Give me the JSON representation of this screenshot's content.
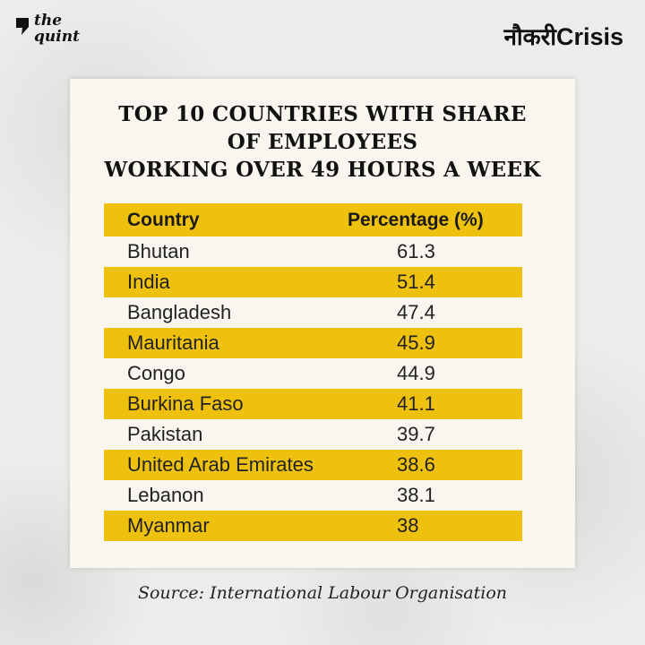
{
  "brand": {
    "left_logo_line1": "the",
    "left_logo_line2": "quint",
    "right_logo_hindi": "नौकरी",
    "right_logo_en": "Crisis"
  },
  "chart_data": {
    "type": "table",
    "title_lines": [
      "TOP 10 COUNTRIES WITH SHARE",
      "OF EMPLOYEES",
      "WORKING OVER 49 HOURS A WEEK"
    ],
    "columns": [
      "Country",
      "Percentage (%)"
    ],
    "rows": [
      {
        "country": "Bhutan",
        "value": "61.3"
      },
      {
        "country": "India",
        "value": "51.4"
      },
      {
        "country": "Bangladesh",
        "value": "47.4"
      },
      {
        "country": "Mauritania",
        "value": "45.9"
      },
      {
        "country": "Congo",
        "value": "44.9"
      },
      {
        "country": "Burkina Faso",
        "value": "41.1"
      },
      {
        "country": "Pakistan",
        "value": "39.7"
      },
      {
        "country": "United Arab Emirates",
        "value": "38.6"
      },
      {
        "country": "Lebanon",
        "value": "38.1"
      },
      {
        "country": "Myanmar",
        "value": "38"
      }
    ],
    "source": "Source: International Labour Organisation",
    "colors": {
      "highlight": "#efc10f",
      "card": "#f8f6ee"
    }
  }
}
